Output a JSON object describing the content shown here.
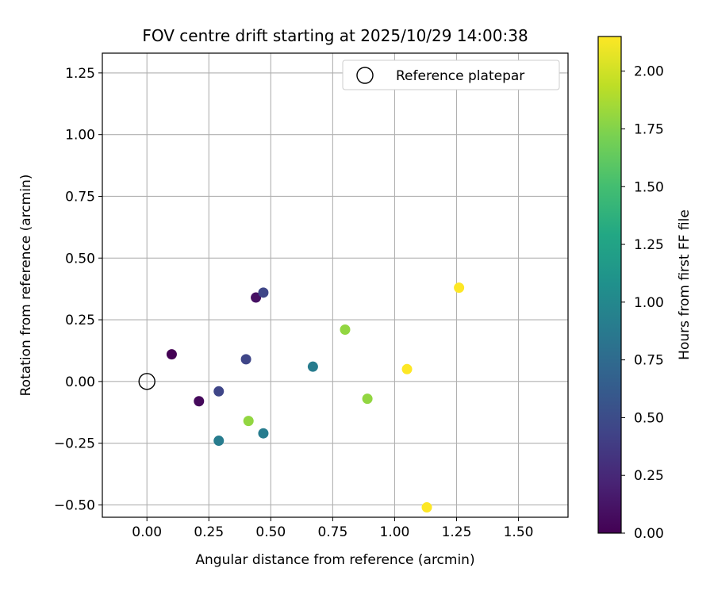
{
  "chart_data": {
    "type": "scatter",
    "title": "FOV centre drift starting at 2025/10/29 14:00:38",
    "xlabel": "Angular distance from reference (arcmin)",
    "ylabel": "Rotation from reference (arcmin)",
    "xlim": [
      -0.18,
      1.7
    ],
    "ylim": [
      -0.55,
      1.33
    ],
    "xticks": [
      0.0,
      0.25,
      0.5,
      0.75,
      1.0,
      1.25,
      1.5
    ],
    "xtick_labels": [
      "0.00",
      "0.25",
      "0.50",
      "0.75",
      "1.00",
      "1.25",
      "1.50"
    ],
    "yticks": [
      -0.5,
      -0.25,
      0.0,
      0.25,
      0.5,
      0.75,
      1.0,
      1.25
    ],
    "ytick_labels": [
      "−0.50",
      "−0.25",
      "0.00",
      "0.25",
      "0.50",
      "0.75",
      "1.00",
      "1.25"
    ],
    "grid": true,
    "legend": {
      "position": "top-right",
      "entries": [
        "Reference platepar"
      ]
    },
    "reference_point": {
      "x": 0.0,
      "y": 0.0,
      "label": "Reference platepar"
    },
    "colorbar": {
      "label": "Hours from first FF file",
      "colormap": "viridis",
      "range": [
        0.0,
        2.15
      ],
      "ticks": [
        0.0,
        0.25,
        0.5,
        0.75,
        1.0,
        1.25,
        1.5,
        1.75,
        2.0
      ],
      "tick_labels": [
        "0.00",
        "0.25",
        "0.50",
        "0.75",
        "1.00",
        "1.25",
        "1.50",
        "1.75",
        "2.00"
      ]
    },
    "points": [
      {
        "x": 0.1,
        "y": 0.11,
        "hours": 0.0
      },
      {
        "x": 0.21,
        "y": -0.08,
        "hours": 0.05
      },
      {
        "x": 0.44,
        "y": 0.34,
        "hours": 0.1
      },
      {
        "x": 0.29,
        "y": -0.04,
        "hours": 0.45
      },
      {
        "x": 0.4,
        "y": 0.09,
        "hours": 0.45
      },
      {
        "x": 0.47,
        "y": 0.36,
        "hours": 0.45
      },
      {
        "x": 0.29,
        "y": -0.24,
        "hours": 0.9
      },
      {
        "x": 0.47,
        "y": -0.21,
        "hours": 0.9
      },
      {
        "x": 0.67,
        "y": 0.06,
        "hours": 0.9
      },
      {
        "x": 0.41,
        "y": -0.16,
        "hours": 1.8
      },
      {
        "x": 0.8,
        "y": 0.21,
        "hours": 1.8
      },
      {
        "x": 0.89,
        "y": -0.07,
        "hours": 1.8
      },
      {
        "x": 1.05,
        "y": 0.05,
        "hours": 2.15
      },
      {
        "x": 1.13,
        "y": -0.51,
        "hours": 2.15
      },
      {
        "x": 1.26,
        "y": 0.38,
        "hours": 2.15
      }
    ]
  }
}
